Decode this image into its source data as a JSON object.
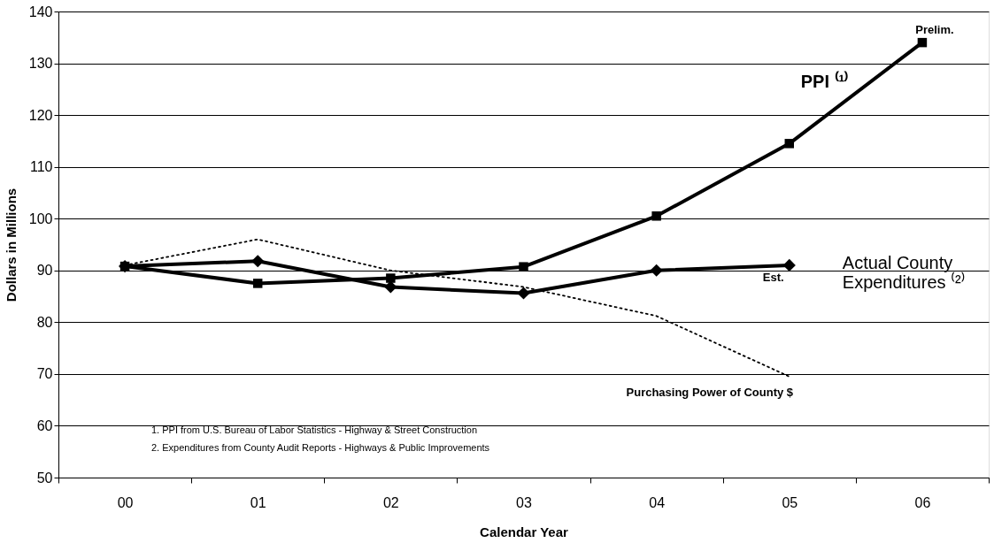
{
  "chart_data": {
    "type": "line",
    "xlabel": "Calendar Year",
    "ylabel": "Dollars in Millions",
    "categories": [
      "00",
      "01",
      "02",
      "03",
      "04",
      "05",
      "06"
    ],
    "series": [
      {
        "name": "PPI ⁽¹⁾",
        "color": "#000000",
        "marker": "square",
        "line_style": "solid",
        "values": [
          90.8,
          87.5,
          88.5,
          90.7,
          100.5,
          114.5,
          134
        ]
      },
      {
        "name": "Actual County\nExpenditures ⁽²⁾",
        "color": "#000000",
        "marker": "diamond",
        "line_style": "solid",
        "values": [
          90.8,
          91.8,
          86.8,
          85.6,
          90,
          91,
          null
        ]
      },
      {
        "name": "Purchasing Power of County $",
        "color": "#000000",
        "marker": "none",
        "line_style": "dotted",
        "values": [
          91,
          96,
          90,
          86.8,
          81.2,
          69.5,
          null
        ]
      }
    ],
    "ylim": [
      50,
      140
    ],
    "yticks": [
      50,
      60,
      70,
      80,
      90,
      100,
      110,
      120,
      130,
      140
    ],
    "grid": "y",
    "annotations": [
      {
        "text": "Prelim.",
        "x": "06",
        "y": 134
      },
      {
        "text": "Est.",
        "x": "05",
        "y": 91
      },
      "1.  PPI from U.S. Bureau of Labor Statistics - Highway & Street Construction",
      "2.  Expenditures from County Audit Reports - Highways & Public Improvements"
    ]
  }
}
